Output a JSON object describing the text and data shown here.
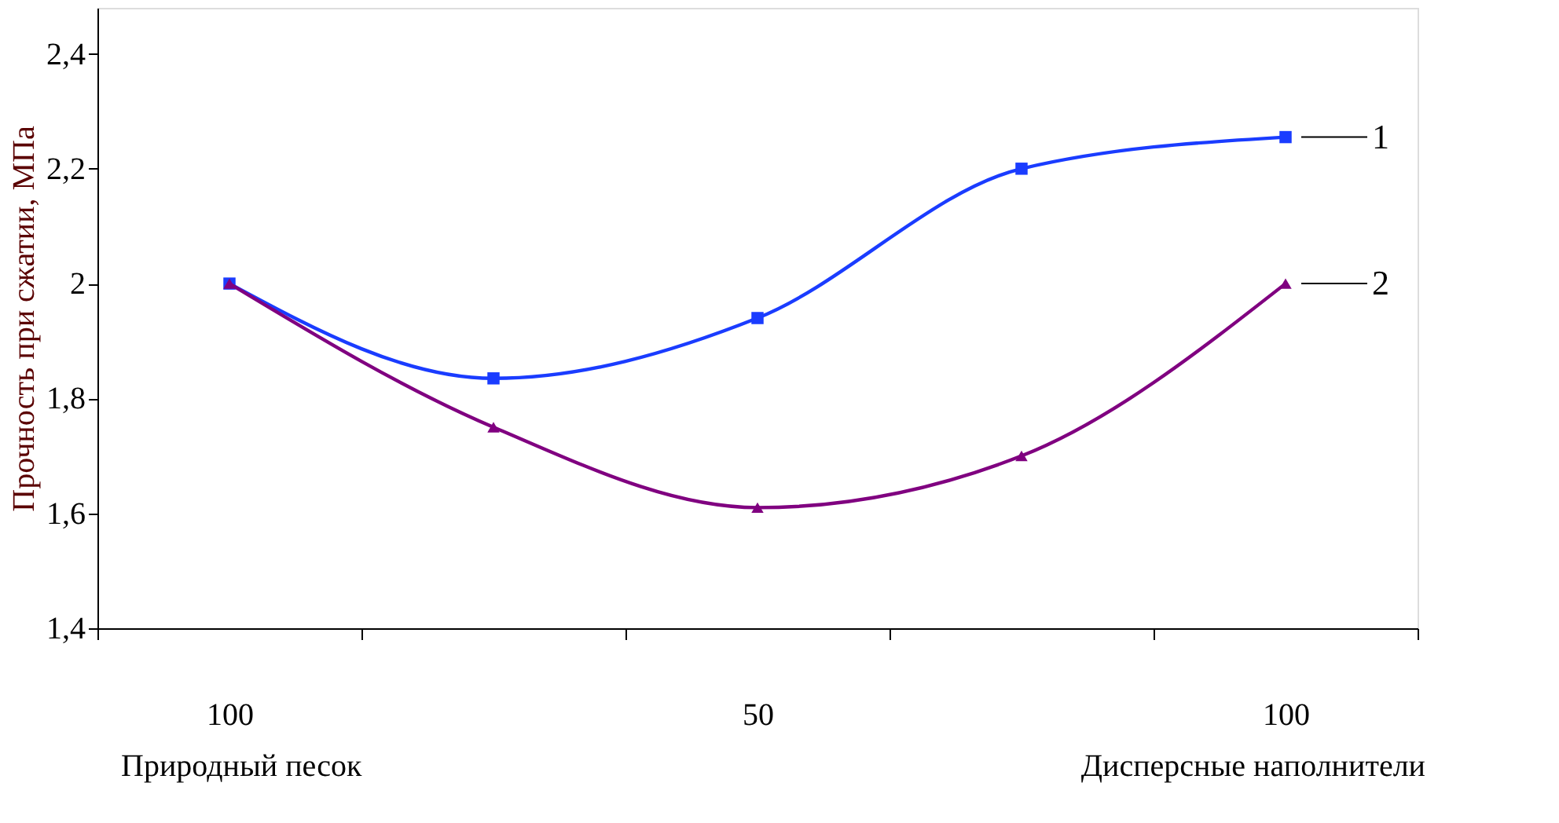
{
  "chart_data": {
    "type": "line",
    "ylabel": "Прочность при сжатии, МПа",
    "categories": [
      "100",
      null,
      "50",
      null,
      "100"
    ],
    "series": [
      {
        "name": "1",
        "color": "#1a3cff",
        "marker": "square",
        "values": [
          2.0,
          1.835,
          1.94,
          2.2,
          2.255
        ]
      },
      {
        "name": "2",
        "color": "#800080",
        "marker": "triangle",
        "values": [
          2.0,
          1.75,
          1.61,
          1.7,
          2.0
        ]
      }
    ],
    "ylim": [
      1.4,
      2.48
    ],
    "yticks": [
      {
        "value": 1.4,
        "label": "1,4"
      },
      {
        "value": 1.6,
        "label": "1,6"
      },
      {
        "value": 1.8,
        "label": "1,8"
      },
      2,
      {
        "value": 2.2,
        "label": "2,2"
      },
      {
        "value": 2.4,
        "label": "2,4"
      }
    ],
    "annotations": [
      "Природный песок",
      "Дисперсные наполнители"
    ],
    "grid": false,
    "legend": false,
    "line_style": "solid"
  }
}
